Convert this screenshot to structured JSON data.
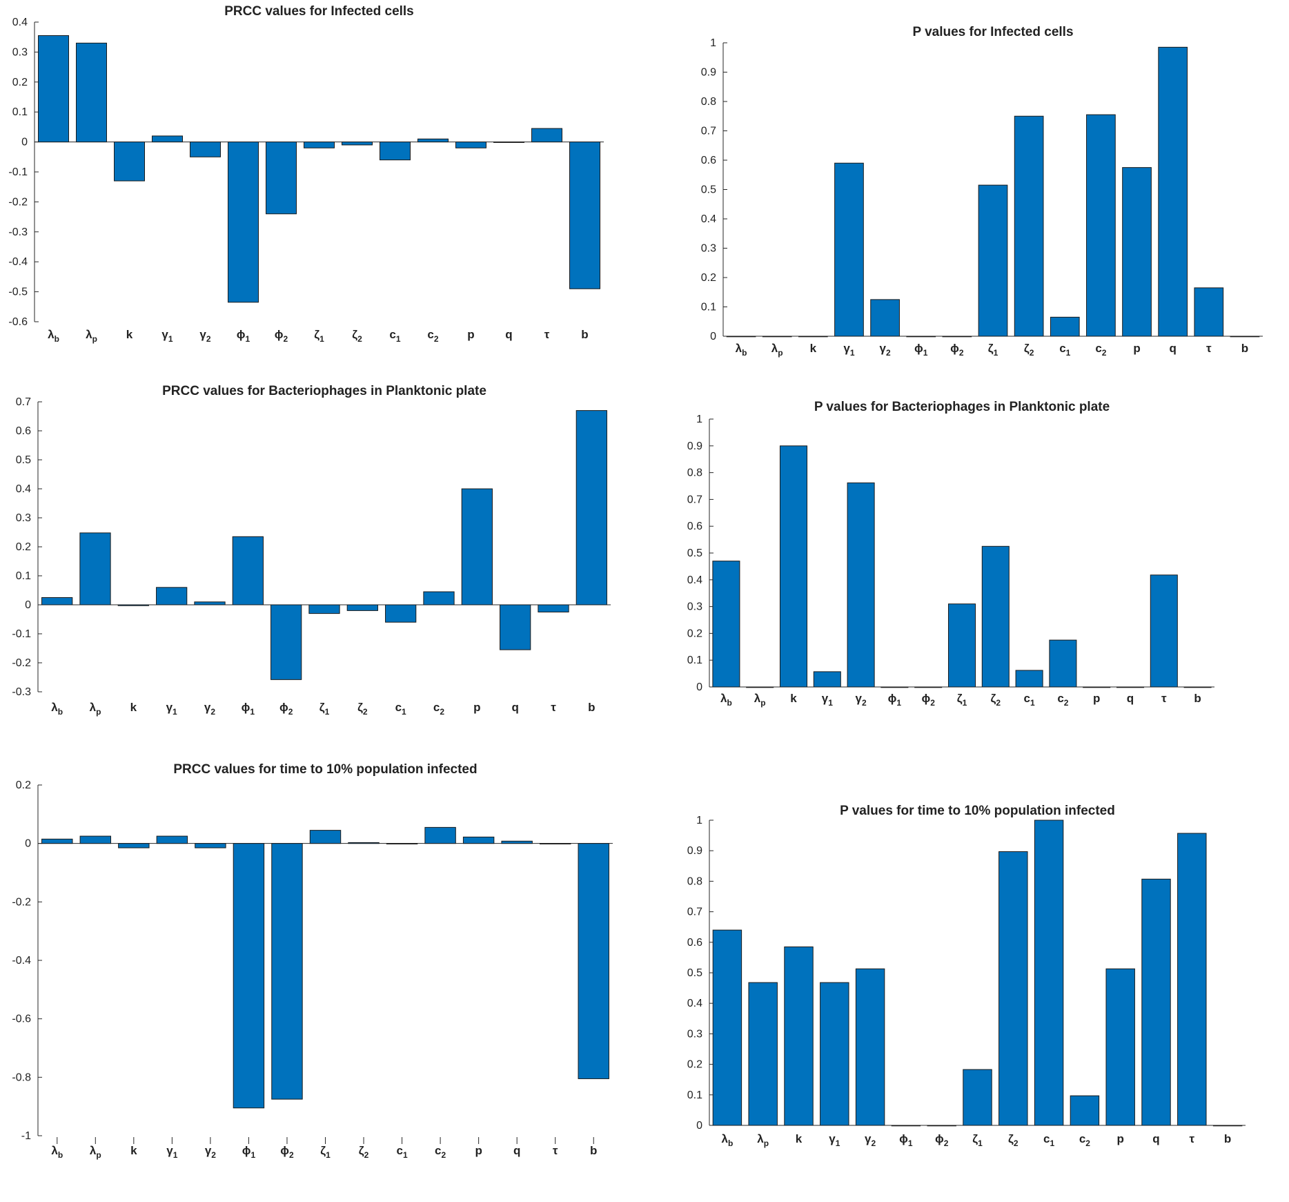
{
  "chart_data": [
    {
      "id": "c1",
      "type": "bar",
      "title": "PRCC values for Infected cells",
      "categories": [
        [
          "λ",
          "b"
        ],
        [
          "λ",
          "p"
        ],
        [
          "k",
          ""
        ],
        [
          "γ",
          "1"
        ],
        [
          "γ",
          "2"
        ],
        [
          "ϕ",
          "1"
        ],
        [
          "ϕ",
          "2"
        ],
        [
          "ζ",
          "1"
        ],
        [
          "ζ",
          "2"
        ],
        [
          "c",
          "1"
        ],
        [
          "c",
          "2"
        ],
        [
          "p",
          ""
        ],
        [
          "q",
          ""
        ],
        [
          "τ",
          ""
        ],
        [
          "b",
          ""
        ]
      ],
      "values": [
        0.355,
        0.33,
        -0.13,
        0.02,
        -0.05,
        -0.535,
        -0.24,
        -0.02,
        -0.01,
        -0.06,
        0.01,
        -0.02,
        0.0,
        0.045,
        -0.49
      ],
      "ylim": [
        -0.6,
        0.4
      ],
      "yticks": [
        0.4,
        0.3,
        0.2,
        0.1,
        0,
        -0.1,
        -0.2,
        -0.3,
        -0.4,
        -0.5,
        -0.6
      ],
      "ytick_labels": [
        "0.4",
        "0.3",
        "0.2",
        "0.1",
        "0",
        "-0.1",
        "-0.2",
        "-0.3",
        "-0.4",
        "-0.5",
        "-0.6"
      ],
      "color": "#0072BD"
    },
    {
      "id": "c2",
      "type": "bar",
      "title": "P values for Infected cells",
      "categories": [
        [
          "λ",
          "b"
        ],
        [
          "λ",
          "p"
        ],
        [
          "k",
          ""
        ],
        [
          "γ",
          "1"
        ],
        [
          "γ",
          "2"
        ],
        [
          "ϕ",
          "1"
        ],
        [
          "ϕ",
          "2"
        ],
        [
          "ζ",
          "1"
        ],
        [
          "ζ",
          "2"
        ],
        [
          "c",
          "1"
        ],
        [
          "c",
          "2"
        ],
        [
          "p",
          ""
        ],
        [
          "q",
          ""
        ],
        [
          "τ",
          ""
        ],
        [
          "b",
          ""
        ]
      ],
      "values": [
        0,
        0,
        0,
        0.59,
        0.125,
        0,
        0,
        0.515,
        0.75,
        0.065,
        0.755,
        0.575,
        0.985,
        0.165,
        0
      ],
      "ylim": [
        0,
        1
      ],
      "yticks": [
        1,
        0.9,
        0.8,
        0.7,
        0.6,
        0.5,
        0.4,
        0.3,
        0.2,
        0.1,
        0
      ],
      "ytick_labels": [
        "1",
        "0.9",
        "0.8",
        "0.7",
        "0.6",
        "0.5",
        "0.4",
        "0.3",
        "0.2",
        "0.1",
        "0"
      ],
      "color": "#0072BD"
    },
    {
      "id": "c3",
      "type": "bar",
      "title": "PRCC values for Bacteriophages in Planktonic plate",
      "categories": [
        [
          "λ",
          "b"
        ],
        [
          "λ",
          "p"
        ],
        [
          "k",
          ""
        ],
        [
          "γ",
          "1"
        ],
        [
          "γ",
          "2"
        ],
        [
          "ϕ",
          "1"
        ],
        [
          "ϕ",
          "2"
        ],
        [
          "ζ",
          "1"
        ],
        [
          "ζ",
          "2"
        ],
        [
          "c",
          "1"
        ],
        [
          "c",
          "2"
        ],
        [
          "p",
          ""
        ],
        [
          "q",
          ""
        ],
        [
          "τ",
          ""
        ],
        [
          "b",
          ""
        ]
      ],
      "values": [
        0.025,
        0.248,
        -0.003,
        0.06,
        0.01,
        0.235,
        -0.258,
        -0.03,
        -0.02,
        -0.06,
        0.045,
        0.4,
        -0.155,
        -0.025,
        0.67
      ],
      "ylim": [
        -0.3,
        0.7
      ],
      "yticks": [
        0.7,
        0.6,
        0.5,
        0.4,
        0.3,
        0.2,
        0.1,
        0,
        -0.1,
        -0.2,
        -0.3
      ],
      "ytick_labels": [
        "0.7",
        "0.6",
        "0.5",
        "0.4",
        "0.3",
        "0.2",
        "0.1",
        "0",
        "-0.1",
        "-0.2",
        "-0.3"
      ],
      "color": "#0072BD"
    },
    {
      "id": "c4",
      "type": "bar",
      "title": "P values for Bacteriophages in Planktonic plate",
      "categories": [
        [
          "λ",
          "b"
        ],
        [
          "λ",
          "p"
        ],
        [
          "k",
          ""
        ],
        [
          "γ",
          "1"
        ],
        [
          "γ",
          "2"
        ],
        [
          "ϕ",
          "1"
        ],
        [
          "ϕ",
          "2"
        ],
        [
          "ζ",
          "1"
        ],
        [
          "ζ",
          "2"
        ],
        [
          "c",
          "1"
        ],
        [
          "c",
          "2"
        ],
        [
          "p",
          ""
        ],
        [
          "q",
          ""
        ],
        [
          "τ",
          ""
        ],
        [
          "b",
          ""
        ]
      ],
      "values": [
        0.47,
        0,
        0.9,
        0.057,
        0.762,
        0,
        0,
        0.31,
        0.525,
        0.062,
        0.175,
        0,
        0,
        0.418,
        0
      ],
      "ylim": [
        0,
        1
      ],
      "yticks": [
        1,
        0.9,
        0.8,
        0.7,
        0.6,
        0.5,
        0.4,
        0.3,
        0.2,
        0.1,
        0
      ],
      "ytick_labels": [
        "1",
        "0.9",
        "0.8",
        "0.7",
        "0.6",
        "0.5",
        "0.4",
        "0.3",
        "0.2",
        "0.1",
        "0"
      ],
      "color": "#0072BD"
    },
    {
      "id": "c5",
      "type": "bar",
      "title": "PRCC values for time to 10% population infected",
      "categories": [
        [
          "λ",
          "b"
        ],
        [
          "λ",
          "p"
        ],
        [
          "k",
          ""
        ],
        [
          "γ",
          "1"
        ],
        [
          "γ",
          "2"
        ],
        [
          "ϕ",
          "1"
        ],
        [
          "ϕ",
          "2"
        ],
        [
          "ζ",
          "1"
        ],
        [
          "ζ",
          "2"
        ],
        [
          "c",
          "1"
        ],
        [
          "c",
          "2"
        ],
        [
          "p",
          ""
        ],
        [
          "q",
          ""
        ],
        [
          "τ",
          ""
        ],
        [
          "b",
          ""
        ]
      ],
      "values": [
        0.015,
        0.025,
        -0.015,
        0.025,
        -0.015,
        -0.905,
        -0.875,
        0.045,
        0.003,
        0.0,
        0.055,
        0.022,
        0.008,
        0.0,
        -0.805
      ],
      "ylim": [
        -1,
        0.2
      ],
      "yticks": [
        0.2,
        0,
        -0.2,
        -0.4,
        -0.6,
        -0.8,
        -1
      ],
      "ytick_labels": [
        "0.2",
        "0",
        "-0.2",
        "-0.4",
        "-0.6",
        "-0.8",
        "-1"
      ],
      "color": "#0072BD"
    },
    {
      "id": "c6",
      "type": "bar",
      "title": "P values for time to 10% population infected",
      "categories": [
        [
          "λ",
          "b"
        ],
        [
          "λ",
          "p"
        ],
        [
          "k",
          ""
        ],
        [
          "γ",
          "1"
        ],
        [
          "γ",
          "2"
        ],
        [
          "ϕ",
          "1"
        ],
        [
          "ϕ",
          "2"
        ],
        [
          "ζ",
          "1"
        ],
        [
          "ζ",
          "2"
        ],
        [
          "c",
          "1"
        ],
        [
          "c",
          "2"
        ],
        [
          "p",
          ""
        ],
        [
          "q",
          ""
        ],
        [
          "τ",
          ""
        ],
        [
          "b",
          ""
        ]
      ],
      "values": [
        0.64,
        0.468,
        0.585,
        0.468,
        0.513,
        0,
        0,
        0.183,
        0.897,
        1.0,
        0.097,
        0.513,
        0.807,
        0.957,
        0
      ],
      "ylim": [
        0,
        1
      ],
      "yticks": [
        1,
        0.9,
        0.8,
        0.7,
        0.6,
        0.5,
        0.4,
        0.3,
        0.2,
        0.1,
        0
      ],
      "ytick_labels": [
        "1",
        "0.9",
        "0.8",
        "0.7",
        "0.6",
        "0.5",
        "0.4",
        "0.3",
        "0.2",
        "0.1",
        "0"
      ],
      "color": "#0072BD"
    }
  ]
}
